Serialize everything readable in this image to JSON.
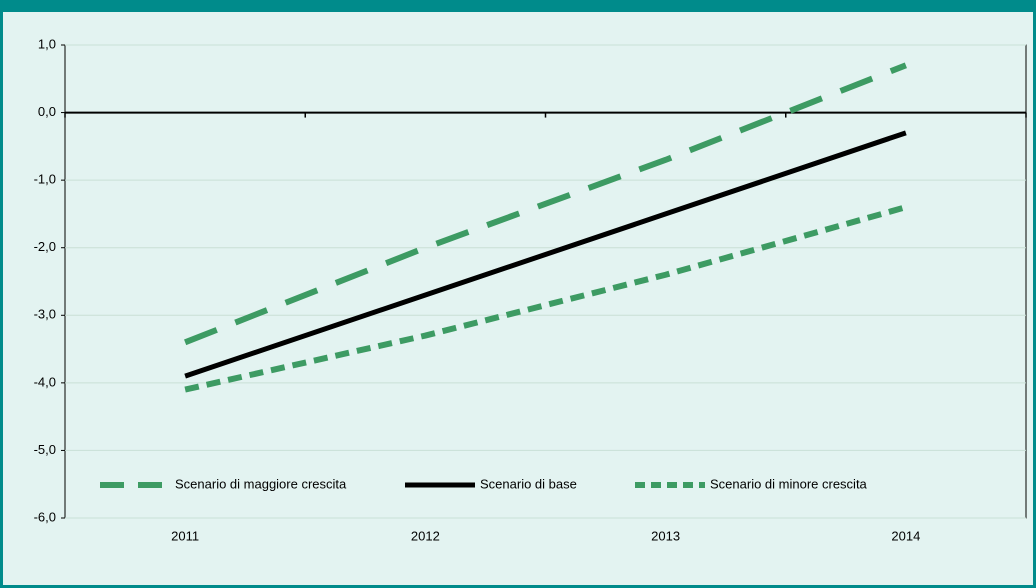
{
  "chart_data": {
    "type": "line",
    "categories": [
      "2011",
      "2012",
      "2013",
      "2014"
    ],
    "series": [
      {
        "name": "Scenario di maggiore crescita",
        "color": "#3d9b63",
        "dash": "long",
        "values": [
          -3.4,
          -2.0,
          -0.7,
          0.7
        ]
      },
      {
        "name": "Scenario di base",
        "color": "#000000",
        "dash": "solid",
        "values": [
          -3.9,
          -2.7,
          -1.5,
          -0.3
        ]
      },
      {
        "name": "Scenario di minore crescita",
        "color": "#3d9b63",
        "dash": "short",
        "values": [
          -4.1,
          -3.3,
          -2.4,
          -1.4
        ]
      }
    ],
    "ylim": [
      -6,
      1
    ],
    "yticks": [
      {
        "value": -6,
        "label": "-6,0"
      },
      {
        "value": -5,
        "label": "-5,0"
      },
      {
        "value": -4,
        "label": "-4,0"
      },
      {
        "value": -3,
        "label": "-3,0"
      },
      {
        "value": -2,
        "label": "-2,0"
      },
      {
        "value": -1,
        "label": "-1,0"
      },
      {
        "value": 0,
        "label": "0,0"
      },
      {
        "value": 1,
        "label": "1,0"
      }
    ],
    "grid": true,
    "legend": "bottom"
  }
}
